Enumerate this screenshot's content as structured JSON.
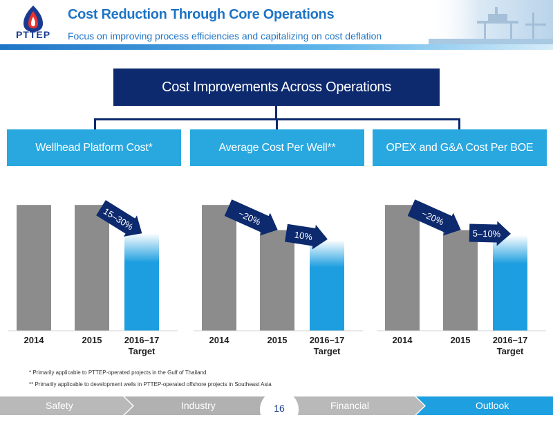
{
  "header": {
    "logo_text": "PTTEP",
    "title": "Cost Reduction Through Core Operations",
    "subtitle": "Focus on improving process efficiencies and capitalizing on cost deflation",
    "logo_icon": "flame-drop-icon"
  },
  "top_box": {
    "label": "Cost Improvements Across Operations"
  },
  "categories": [
    {
      "label": "Wellhead Platform Cost*"
    },
    {
      "label": "Average Cost Per Well**"
    },
    {
      "label": "OPEX and G&A Cost Per BOE"
    }
  ],
  "colors": {
    "bar_gray": "#8c8c8c",
    "bar_blue": "#1d9ee0",
    "arrow_navy": "#0d2a6e",
    "header_blue": "#1e74c6",
    "box_light_blue": "#29a8e0"
  },
  "chart_data": [
    {
      "type": "bar",
      "categories": [
        [
          "2014"
        ],
        [
          "2015"
        ],
        [
          "2016–17",
          "Target"
        ]
      ],
      "values": [
        100,
        100,
        77.5
      ],
      "ylim": [
        0,
        110
      ],
      "grid": false,
      "annotations": [
        {
          "text": "15–30%",
          "from": 1,
          "to": 2
        }
      ]
    },
    {
      "type": "bar",
      "categories": [
        [
          "2014"
        ],
        [
          "2015"
        ],
        [
          "2016–17",
          "Target"
        ]
      ],
      "values": [
        100,
        80,
        72
      ],
      "ylim": [
        0,
        110
      ],
      "grid": false,
      "annotations": [
        {
          "text": "~20%",
          "from": 0,
          "to": 1
        },
        {
          "text": "10%",
          "from": 1,
          "to": 2
        }
      ]
    },
    {
      "type": "bar",
      "categories": [
        [
          "2014"
        ],
        [
          "2015"
        ],
        [
          "2016–17",
          "Target"
        ]
      ],
      "values": [
        100,
        80,
        76
      ],
      "ylim": [
        0,
        110
      ],
      "grid": false,
      "annotations": [
        {
          "text": "~20%",
          "from": 0,
          "to": 1
        },
        {
          "text": "5–10%",
          "from": 1,
          "to": 2
        }
      ]
    }
  ],
  "footnotes": [
    "*   Primarily applicable to PTTEP-operated projects in the Gulf of Thailand",
    "**  Primarily applicable to development wells in PTTEP-operated offshore projects in Southeast Asia"
  ],
  "nav": {
    "items": [
      "Safety",
      "Industry",
      "Financial",
      "Outlook"
    ],
    "active_index": 3,
    "page_number": "16"
  }
}
